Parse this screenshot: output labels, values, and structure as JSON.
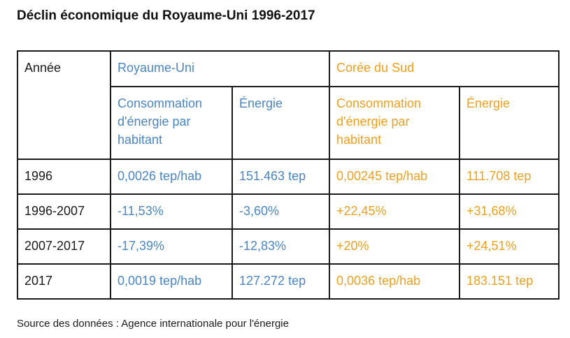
{
  "title": "Déclin économique du Royaume-Uni 1996-2017",
  "colors": {
    "uk": "#4a86c5",
    "korea": "#f0a01e",
    "text": "#1a1a1a"
  },
  "table": {
    "year_header": "Année",
    "groups": [
      {
        "label": "Royaume-Uni"
      },
      {
        "label": "Corée du Sud"
      }
    ],
    "subheaders": {
      "uk_consumption": "Consommation d'énergie par habitant",
      "uk_energy": "Énergie",
      "kr_consumption": "Consommation d'énergie par habitant",
      "kr_energy": "Énergie"
    },
    "rows": [
      {
        "year": "1996",
        "uk_consumption": "0,0026 tep/hab",
        "uk_energy": "151.463 tep",
        "kr_consumption": "0,00245 tep/hab",
        "kr_energy": "111.708 tep"
      },
      {
        "year": "1996-2007",
        "uk_consumption": "-11,53%",
        "uk_energy": "-3,60%",
        "kr_consumption": "+22,45%",
        "kr_energy": "+31,68%"
      },
      {
        "year": "2007-2017",
        "uk_consumption": "-17,39%",
        "uk_energy": "-12,83%",
        "kr_consumption": "+20%",
        "kr_energy": "+24,51%"
      },
      {
        "year": "2017",
        "uk_consumption": "0,0019 tep/hab",
        "uk_energy": "127.272 tep",
        "kr_consumption": "0,0036 tep/hab",
        "kr_energy": "183.151 tep"
      }
    ]
  },
  "source": "Source des données : Agence internationale pour l'énergie"
}
